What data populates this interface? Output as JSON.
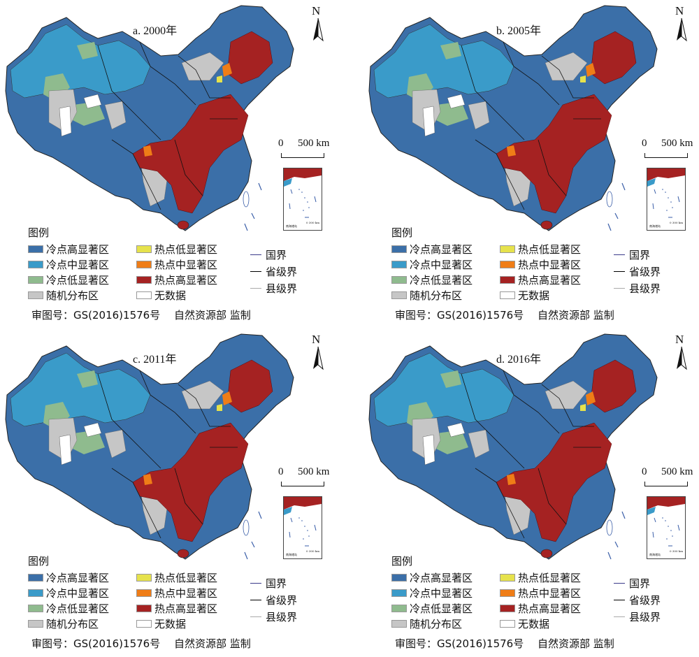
{
  "colors": {
    "cold_high": "#3b6fa8",
    "cold_mid": "#3a9bc9",
    "cold_low": "#8fbb8e",
    "random": "#c6c6c6",
    "hot_low": "#e6e24c",
    "hot_mid": "#ef7d17",
    "hot_high": "#a52222",
    "no_data": "#ffffff"
  },
  "panels": [
    {
      "title": "a. 2000年"
    },
    {
      "title": "b. 2005年"
    },
    {
      "title": "c. 2011年"
    },
    {
      "title": "d. 2016年"
    }
  ],
  "north_label": "N",
  "scale": {
    "zero": "0",
    "km": "500 km"
  },
  "inset": {
    "caption": "南海诸岛",
    "scale": "0  300 km"
  },
  "legend": {
    "title": "图例",
    "cold_high": "冷点高显著区",
    "cold_mid": "冷点中显著区",
    "cold_low": "冷点低显著区",
    "random": "随机分布区",
    "hot_low": "热点低显著区",
    "hot_mid": "热点中显著区",
    "hot_high": "热点高显著区",
    "no_data": "无数据",
    "national_border": "国界",
    "provincial_border": "省级界",
    "county_border": "县级界"
  },
  "credit": "审图号：GS(2016)1576号　 自然资源部 监制"
}
